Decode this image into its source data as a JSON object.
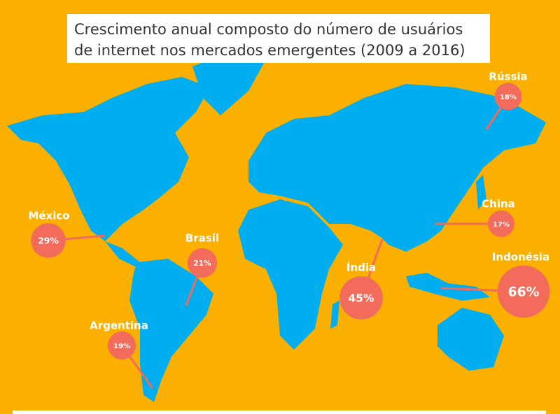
{
  "title": [
    "Crescimento anual composto do número de usuários",
    "de internet nos mercados emergentes (2009 a 2016)"
  ],
  "markers": {
    "names": [
      "Rússia",
      "China",
      "Indonésia",
      "Índia",
      "Brasil",
      "México",
      "Argentina"
    ],
    "values": [
      18,
      17,
      66,
      45,
      21,
      29,
      19
    ],
    "value_labels": [
      "18%",
      "17%",
      "66%",
      "45%",
      "21%",
      "29%",
      "19%"
    ]
  },
  "bubble_color": "#f26b5b",
  "background_color": "#fbb000",
  "land_color": "#00aeef"
}
